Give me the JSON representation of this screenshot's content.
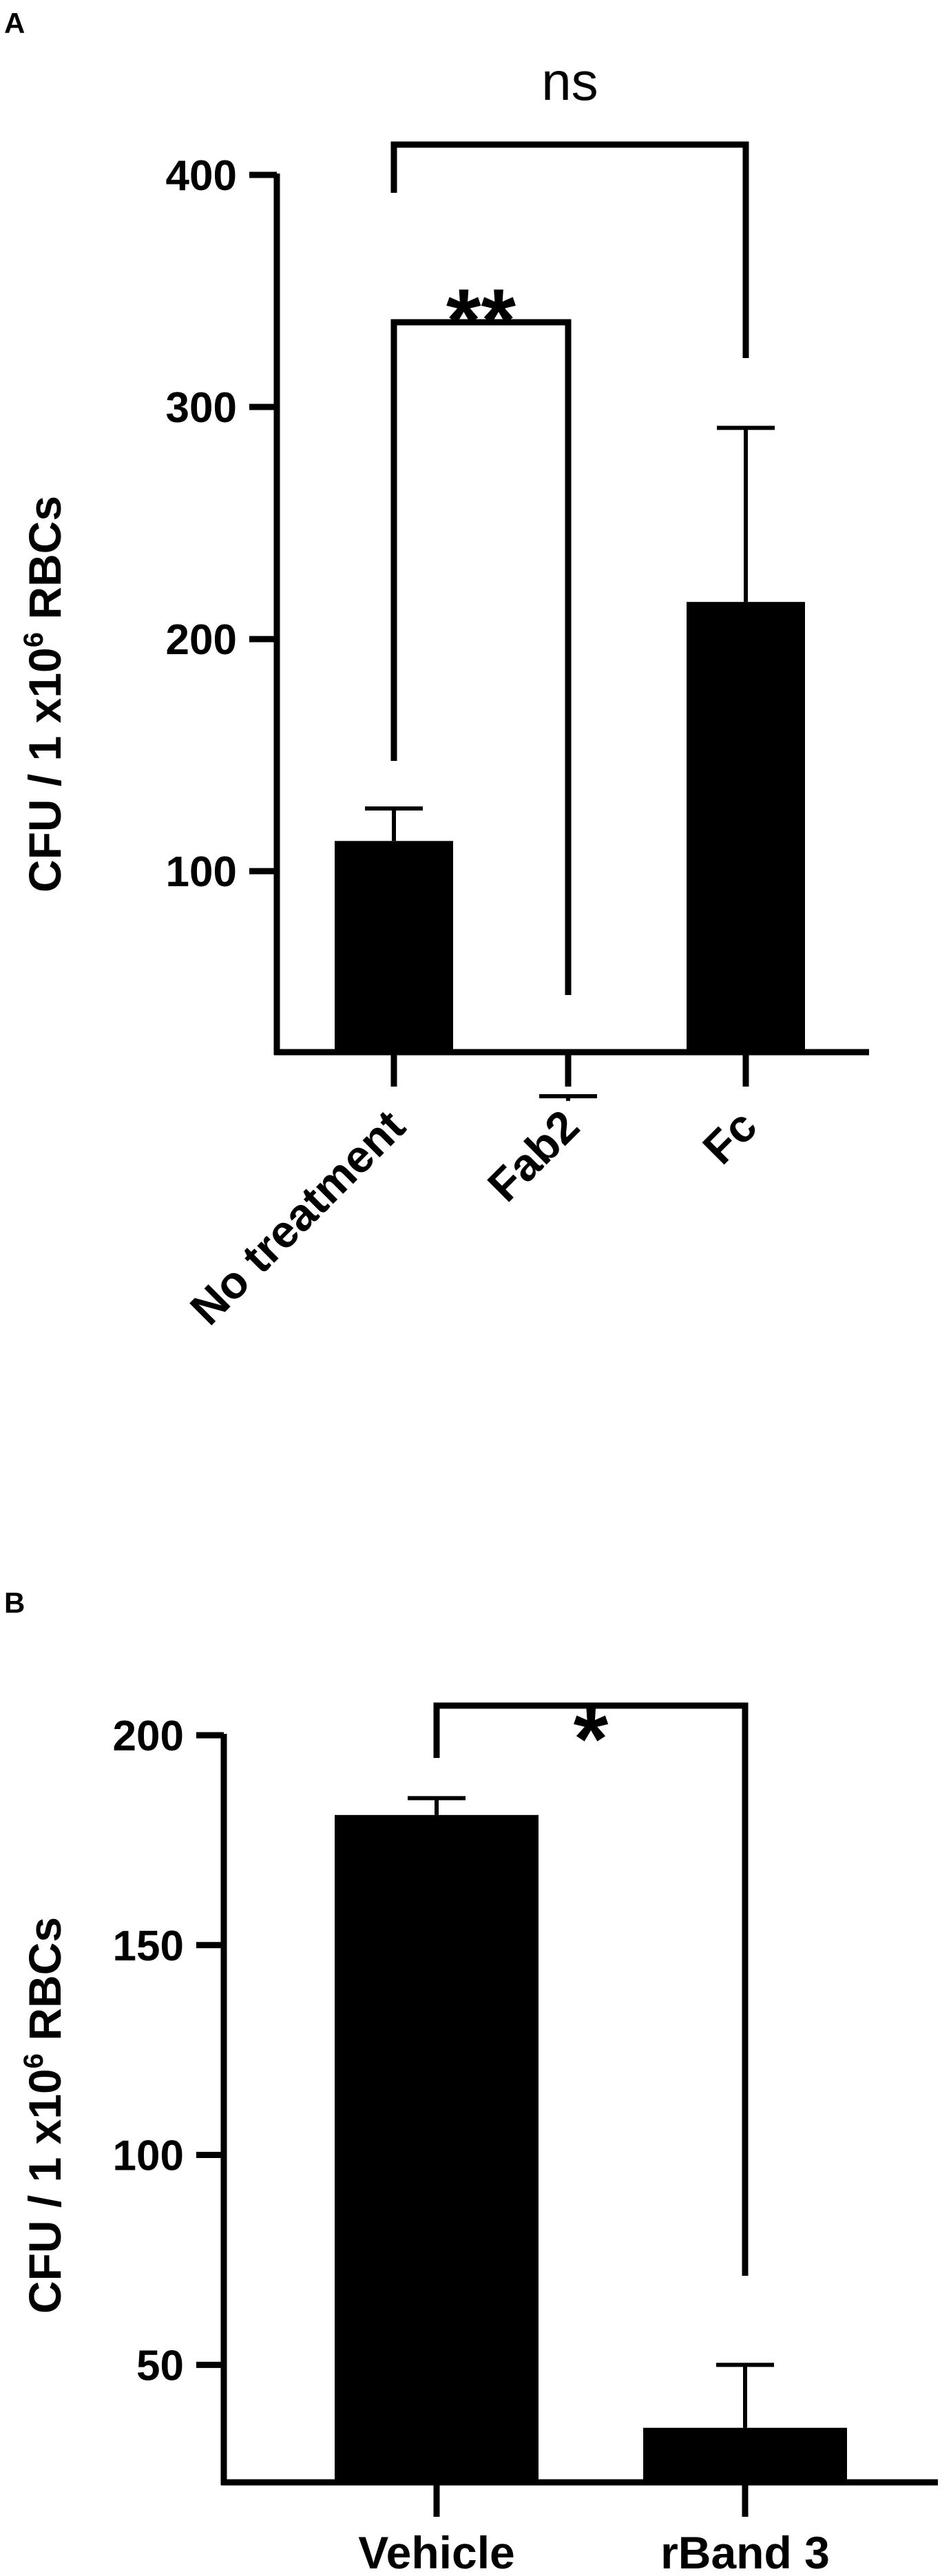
{
  "figure": {
    "panels": [
      {
        "letter": "A",
        "ylabel_main": "CFU / 1 x10",
        "ylabel_sup": "6",
        "ylabel_tail": " RBCs"
      },
      {
        "letter": "B",
        "ylabel_main": "CFU / 1 x10",
        "ylabel_sup": "6",
        "ylabel_tail": " RBCs"
      }
    ]
  },
  "chart_data": [
    {
      "type": "bar",
      "panel": "A",
      "title": "",
      "xlabel": "",
      "ylabel": "CFU / 1 x10^6 RBCs",
      "categories": [
        "No treatment",
        "Fab2",
        "Fc"
      ],
      "values": [
        113,
        1,
        216
      ],
      "errors": [
        14,
        2,
        75
      ],
      "yticks": [
        100,
        200,
        300,
        400
      ],
      "ylim": [
        22,
        400
      ],
      "bar_color": "#000000",
      "grid": false,
      "legend": "none",
      "comparisons": [
        {
          "from": "No treatment",
          "to": "Fab2",
          "label": "**"
        },
        {
          "from": "No treatment",
          "to": "Fc",
          "label": "ns"
        }
      ]
    },
    {
      "type": "bar",
      "panel": "B",
      "title": "",
      "xlabel": "",
      "ylabel": "CFU / 1 x10^6 RBCs",
      "categories": [
        "Vehicle",
        "rBand 3"
      ],
      "values": [
        181,
        35
      ],
      "errors": [
        4,
        15
      ],
      "yticks": [
        50,
        100,
        150,
        200
      ],
      "ylim": [
        22,
        200
      ],
      "bar_color": "#000000",
      "grid": false,
      "legend": "none",
      "comparisons": [
        {
          "from": "Vehicle",
          "to": "rBand 3",
          "label": "*"
        }
      ]
    }
  ]
}
